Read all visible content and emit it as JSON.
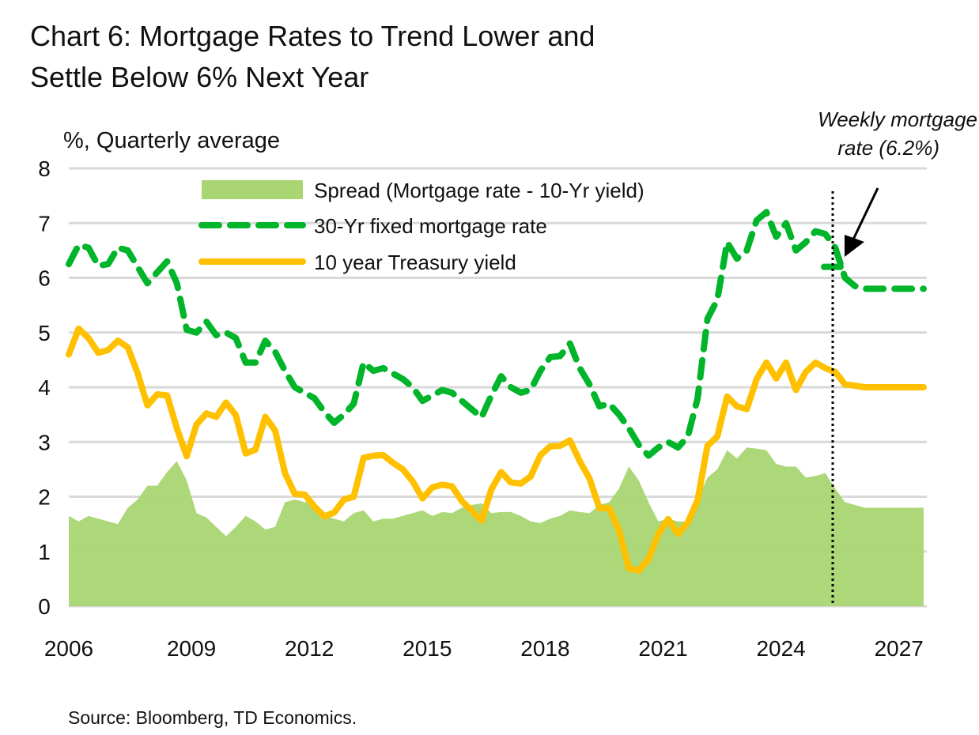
{
  "chart_data": {
    "type": "line",
    "title_lines": [
      "Chart 6: Mortgage Rates to Trend Lower and",
      "Settle Below 6% Next Year"
    ],
    "ylabel": "%, Quarterly average",
    "xlabel": "",
    "ylim": [
      0,
      8
    ],
    "yticks": [
      "0",
      "1",
      "2",
      "3",
      "4",
      "5",
      "6",
      "7",
      "8"
    ],
    "xticks": [
      "2006",
      "2009",
      "2012",
      "2015",
      "2018",
      "2021",
      "2024",
      "2027"
    ],
    "x_start": "2006Q1",
    "x_end": "2027Q4",
    "frequency": "quarterly",
    "grid": true,
    "legend_placement": "top",
    "series": [
      {
        "name": "Spread (Mortgage rate - 10-Yr yield)",
        "style": "area",
        "color": "#a9d672",
        "values": [
          1.65,
          1.55,
          1.65,
          1.6,
          1.55,
          1.5,
          1.8,
          1.95,
          2.2,
          2.2,
          2.45,
          2.65,
          2.3,
          1.7,
          1.62,
          1.45,
          1.28,
          1.45,
          1.65,
          1.55,
          1.4,
          1.45,
          1.9,
          1.95,
          1.9,
          1.9,
          1.65,
          1.6,
          1.55,
          1.7,
          1.75,
          1.55,
          1.6,
          1.6,
          1.65,
          1.7,
          1.75,
          1.65,
          1.72,
          1.7,
          1.8,
          1.85,
          1.88,
          1.7,
          1.72,
          1.72,
          1.65,
          1.55,
          1.52,
          1.6,
          1.65,
          1.75,
          1.72,
          1.7,
          1.85,
          1.9,
          2.15,
          2.55,
          2.3,
          1.9,
          1.55,
          1.6,
          1.55,
          1.55,
          1.95,
          2.35,
          2.5,
          2.85,
          2.7,
          2.9,
          2.88,
          2.85,
          2.6,
          2.55,
          2.55,
          2.35,
          2.38,
          2.43,
          2.15,
          1.9,
          1.85,
          1.8,
          1.8,
          1.8,
          1.8,
          1.8,
          1.8,
          1.8
        ]
      },
      {
        "name": "30-Yr fixed mortgage rate",
        "style": "dashed",
        "color": "#00b52a",
        "values": [
          6.25,
          6.6,
          6.55,
          6.22,
          6.25,
          6.55,
          6.5,
          6.2,
          5.9,
          6.1,
          6.3,
          5.9,
          5.05,
          5.0,
          5.2,
          4.95,
          5.0,
          4.9,
          4.45,
          4.45,
          4.85,
          4.65,
          4.3,
          4.0,
          3.9,
          3.8,
          3.55,
          3.35,
          3.5,
          3.7,
          4.45,
          4.3,
          4.35,
          4.25,
          4.15,
          4.0,
          3.75,
          3.85,
          3.95,
          3.9,
          3.75,
          3.6,
          3.45,
          3.85,
          4.2,
          4.0,
          3.9,
          3.95,
          4.3,
          4.55,
          4.57,
          4.8,
          4.35,
          4.05,
          3.65,
          3.7,
          3.5,
          3.25,
          2.95,
          2.75,
          2.9,
          3.0,
          2.9,
          3.1,
          3.8,
          5.25,
          5.6,
          6.65,
          6.35,
          6.5,
          7.05,
          7.2,
          6.75,
          7.0,
          6.5,
          6.65,
          6.85,
          6.8,
          6.55,
          6.0,
          5.85,
          5.8,
          5.8,
          5.8,
          5.8,
          5.8,
          5.8,
          5.8
        ]
      },
      {
        "name": "10 year Treasury yield",
        "style": "solid",
        "color": "#ffc000",
        "values": [
          4.6,
          5.07,
          4.9,
          4.63,
          4.68,
          4.85,
          4.73,
          4.26,
          3.67,
          3.87,
          3.85,
          3.25,
          2.74,
          3.32,
          3.52,
          3.46,
          3.72,
          3.49,
          2.79,
          2.86,
          3.46,
          3.21,
          2.43,
          2.05,
          2.04,
          1.82,
          1.64,
          1.71,
          1.95,
          2.0,
          2.71,
          2.75,
          2.76,
          2.62,
          2.5,
          2.28,
          1.97,
          2.17,
          2.22,
          2.19,
          1.92,
          1.75,
          1.56,
          2.13,
          2.45,
          2.26,
          2.24,
          2.37,
          2.76,
          2.92,
          2.93,
          3.03,
          2.65,
          2.33,
          1.79,
          1.79,
          1.38,
          0.69,
          0.65,
          0.86,
          1.32,
          1.59,
          1.32,
          1.53,
          1.94,
          2.93,
          3.1,
          3.83,
          3.65,
          3.6,
          4.15,
          4.45,
          4.16,
          4.45,
          3.95,
          4.28,
          4.45,
          4.35,
          4.28,
          4.05,
          4.03,
          4.0,
          4.0,
          4.0,
          4.0,
          4.0,
          4.0,
          4.0
        ]
      }
    ],
    "annotations": {
      "weekly_label_lines": [
        "Weekly mortgage",
        "rate (6.2%)"
      ],
      "weekly_value": 6.2,
      "weekly_period": "2025Q3"
    },
    "source": "Source: Bloomberg, TD Economics."
  }
}
